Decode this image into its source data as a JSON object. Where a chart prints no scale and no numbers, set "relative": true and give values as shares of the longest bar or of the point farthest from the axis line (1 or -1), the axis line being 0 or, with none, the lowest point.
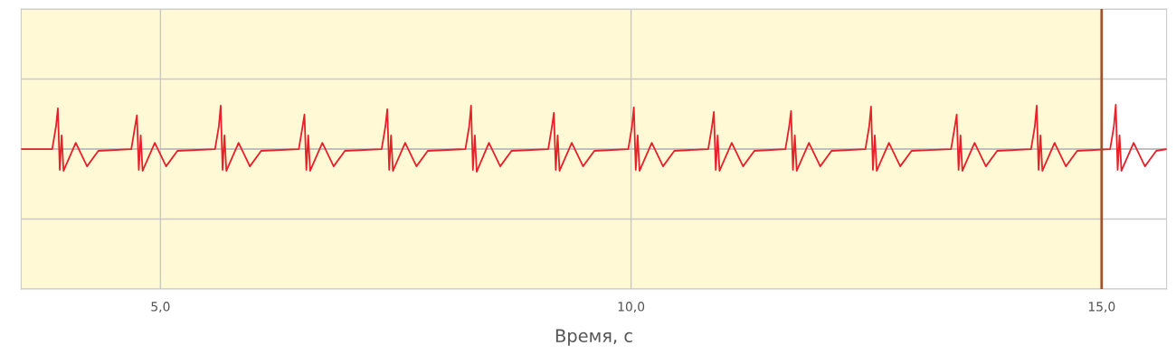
{
  "chart_data": {
    "type": "line",
    "relative": true,
    "xlabel": "Время, с",
    "xlim": [
      3.52,
      15.69
    ],
    "xticks": [
      {
        "value": 5,
        "label": "5,0"
      },
      {
        "value": 10,
        "label": "10,0"
      },
      {
        "value": 15,
        "label": "15,0"
      }
    ],
    "tick_labels": "x",
    "grid": true,
    "marker": "none",
    "line_style": "solid",
    "bands": [
      {
        "axis": "x",
        "from": 3.52,
        "to": 15,
        "color": "#fff9d6"
      }
    ],
    "ref_lines": [
      {
        "axis": "x",
        "value": 15,
        "color": "#a0522d",
        "line_style": "solid"
      }
    ],
    "series": [
      {
        "color": "#e8202a",
        "x": [
          3.52,
          3.85,
          3.89,
          3.91,
          3.93,
          3.95,
          3.97,
          4.1,
          4.22,
          4.34,
          4.69,
          4.73,
          4.75,
          4.77,
          4.79,
          4.81,
          4.94,
          5.06,
          5.18,
          5.58,
          5.62,
          5.64,
          5.66,
          5.68,
          5.7,
          5.83,
          5.95,
          6.07,
          6.47,
          6.51,
          6.53,
          6.55,
          6.57,
          6.59,
          6.72,
          6.84,
          6.96,
          7.35,
          7.39,
          7.41,
          7.43,
          7.45,
          7.47,
          7.6,
          7.72,
          7.84,
          8.24,
          8.28,
          8.3,
          8.32,
          8.34,
          8.36,
          8.49,
          8.61,
          8.73,
          9.12,
          9.16,
          9.18,
          9.2,
          9.22,
          9.24,
          9.37,
          9.49,
          9.61,
          9.97,
          10.01,
          10.03,
          10.05,
          10.07,
          10.09,
          10.22,
          10.34,
          10.46,
          10.82,
          10.86,
          10.88,
          10.9,
          10.92,
          10.94,
          11.07,
          11.19,
          11.31,
          11.64,
          11.68,
          11.7,
          11.72,
          11.74,
          11.76,
          11.89,
          12.01,
          12.13,
          12.49,
          12.53,
          12.55,
          12.57,
          12.59,
          12.61,
          12.74,
          12.86,
          12.98,
          13.4,
          13.44,
          13.46,
          13.48,
          13.5,
          13.52,
          13.65,
          13.77,
          13.89,
          14.25,
          14.29,
          14.31,
          14.33,
          14.35,
          14.37,
          14.5,
          14.62,
          14.74,
          15.09,
          15.13,
          15.15,
          15.17,
          15.19,
          15.21,
          15.34,
          15.46,
          15.58,
          15.69
        ],
        "values": [
          0,
          0,
          0.51,
          0.92,
          -0.47,
          0.31,
          -0.49,
          0.14,
          -0.39,
          -0.04,
          0,
          0.51,
          0.76,
          -0.47,
          0.31,
          -0.49,
          0.14,
          -0.39,
          -0.04,
          0,
          0.51,
          0.98,
          -0.47,
          0.31,
          -0.49,
          0.14,
          -0.39,
          -0.04,
          0,
          0.51,
          0.78,
          -0.47,
          0.31,
          -0.49,
          0.14,
          -0.39,
          -0.04,
          0,
          0.51,
          0.9,
          -0.47,
          0.31,
          -0.49,
          0.14,
          -0.39,
          -0.04,
          0,
          0.51,
          0.98,
          -0.47,
          0.31,
          -0.51,
          0.14,
          -0.39,
          -0.04,
          0,
          0.51,
          0.82,
          -0.47,
          0.31,
          -0.49,
          0.14,
          -0.39,
          -0.04,
          0,
          0.51,
          0.94,
          -0.47,
          0.31,
          -0.49,
          0.14,
          -0.39,
          -0.04,
          0,
          0.51,
          0.84,
          -0.47,
          0.31,
          -0.49,
          0.14,
          -0.39,
          -0.04,
          0,
          0.51,
          0.86,
          -0.47,
          0.31,
          -0.49,
          0.14,
          -0.39,
          -0.04,
          0,
          0.51,
          0.96,
          -0.47,
          0.31,
          -0.49,
          0.14,
          -0.39,
          -0.04,
          0,
          0.51,
          0.78,
          -0.47,
          0.31,
          -0.49,
          0.14,
          -0.39,
          -0.04,
          0,
          0.51,
          0.98,
          -0.47,
          0.31,
          -0.49,
          0.14,
          -0.39,
          -0.04,
          0,
          0.51,
          1.0,
          -0.47,
          0.31,
          -0.49,
          0.14,
          -0.39,
          -0.04,
          0
        ]
      }
    ]
  }
}
